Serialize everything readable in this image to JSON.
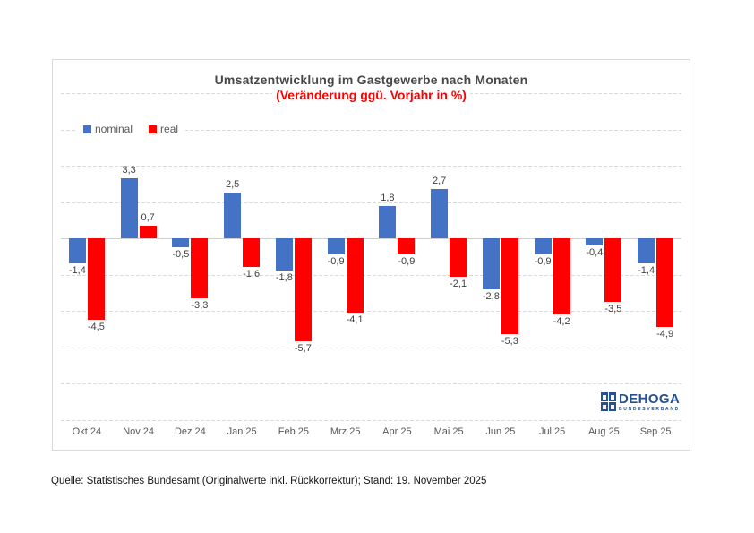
{
  "page": {
    "source_note": "Quelle: Statistisches Bundesamt (Originalwerte inkl. Rückkorrektur); Stand: 19. November 2025"
  },
  "chart_data": {
    "type": "bar",
    "title": "Umsatzentwicklung im Gastgewerbe nach Monaten",
    "subtitle": "(Veränderung ggü. Vorjahr in %)",
    "subtitle_color": "#FF0000",
    "categories": [
      "Okt 24",
      "Nov 24",
      "Dez 24",
      "Jan 25",
      "Feb 25",
      "Mrz 25",
      "Apr 25",
      "Mai 25",
      "Jun 25",
      "Jul 25",
      "Aug 25",
      "Sep 25"
    ],
    "series": [
      {
        "name": "nominal",
        "color": "#4472C4",
        "values": [
          -1.4,
          3.3,
          -0.5,
          2.5,
          -1.8,
          -0.9,
          1.8,
          2.7,
          -2.8,
          -0.9,
          -0.4,
          -1.4
        ]
      },
      {
        "name": "real",
        "color": "#FF0000",
        "values": [
          -4.5,
          0.7,
          -3.3,
          -1.6,
          -5.7,
          -4.1,
          -0.9,
          -2.1,
          -5.3,
          -4.2,
          -3.5,
          -4.9
        ]
      }
    ],
    "ylim": [
      -10,
      8
    ],
    "grid_step": 2,
    "grid": true,
    "legend_position": "top-left",
    "decimal_separator": ",",
    "ylabel": "",
    "xlabel": ""
  },
  "logo": {
    "name": "DEHOGA",
    "subtext": "BUNDESVERBAND",
    "color": "#26508F"
  }
}
